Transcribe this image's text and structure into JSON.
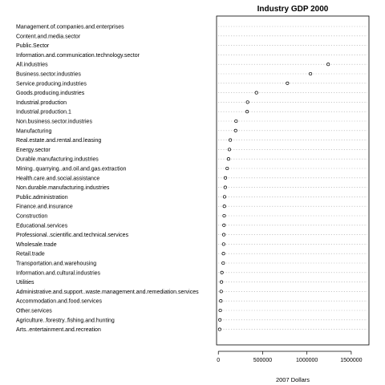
{
  "chart_data": {
    "type": "scatter",
    "title": "Industry GDP 2000",
    "xlabel": "2007 Dollars",
    "ylabel": "",
    "xlim": [
      -20000,
      1700000
    ],
    "xticks": [
      0,
      500000,
      1000000,
      1500000
    ],
    "xtick_labels": [
      "0",
      "500000",
      "1000000",
      "1500000"
    ],
    "grid": "dotted horizontal",
    "categories": [
      "Management.of.companies.and.enterprises",
      "Content.and.media.sector",
      "Public.Sector",
      "Information.and.communication.technology.sector",
      "All.industries",
      "Business.sector.industries",
      "Service.producing.industries",
      "Goods.producing.industries",
      "Industrial.production",
      "Industrial.production.1",
      "Non.business.sector.industries",
      "Manufacturing",
      "Real.estate.and.rental.and.leasing",
      "Energy.sector",
      "Durable.manufacturing.industries",
      "Mining..quarrying..and.oil.and.gas.extraction",
      "Health.care.and.social.assistance",
      "Non.durable.manufacturing.industries",
      "Public.administration",
      "Finance.and.insurance",
      "Construction",
      "Educational.services",
      "Professional..scientific.and.technical.services",
      "Wholesale.trade",
      "Retail.trade",
      "Transportation.and.warehousing",
      "Information.and.cultural.industries",
      "Utilities",
      "Administrative.and.support..waste.management.and.remediation.services",
      "Accommodation.and.food.services",
      "Other.services",
      "Agriculture..forestry..fishing.and.hunting",
      "Arts..entertainment.and.recreation"
    ],
    "values": [
      null,
      null,
      null,
      null,
      1240000,
      1040000,
      780000,
      430000,
      330000,
      325000,
      200000,
      195000,
      135000,
      125000,
      115000,
      100000,
      80000,
      78000,
      70000,
      68000,
      66000,
      64000,
      62000,
      60000,
      58000,
      55000,
      40000,
      35000,
      32000,
      28000,
      22000,
      18000,
      15000
    ],
    "marker": "open circle"
  }
}
